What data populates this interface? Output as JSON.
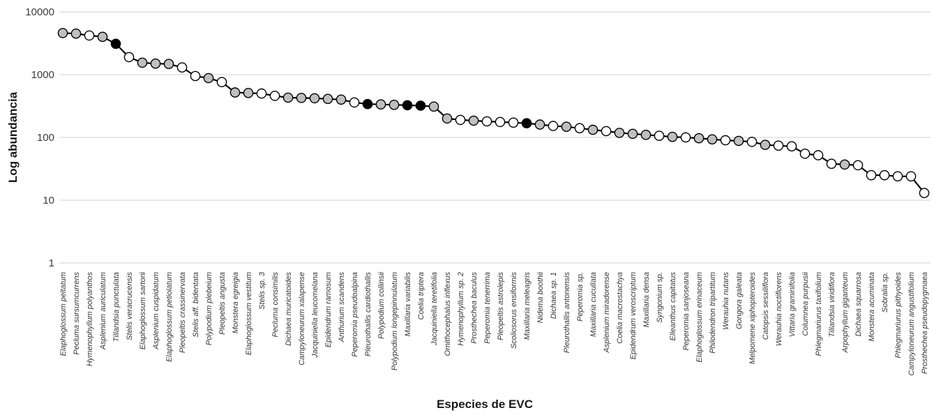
{
  "chart_data": {
    "type": "line",
    "title": "",
    "xlabel": "Especies de EVC",
    "ylabel": "Log abundancia",
    "y_scale": "log",
    "ylim": [
      1,
      10000
    ],
    "y_ticks": [
      "10000",
      "1000",
      "100",
      "10",
      "1"
    ],
    "y_tick_values": [
      10000,
      1000,
      100,
      10,
      1
    ],
    "grid": "horizontal",
    "legend": "none",
    "line_color": "#000000",
    "marker_stroke_color": "#000000",
    "marker_fill_colors": {
      "gray": "#bfbfbf",
      "white": "#ffffff",
      "black": "#000000"
    },
    "categories": [
      "Elaphoglossum peltatum",
      "Pecluma sursumcurrens",
      "Hymenophyllum polyanthos",
      "Asplenium auriculatum",
      "Tillandsia punctulata",
      "Stelis veracrucensis",
      "Elaphoglossum sartorii",
      "Asplenium cuspidatum",
      "Elaphoglossum petiolatum",
      "Pleopeltis crassinervata",
      "Stelis aff. bidentata",
      "Polypodium plebeium",
      "Pleopeltis angusta",
      "Monstera egreigia",
      "Elaphoglossum vestitum",
      "Stelis sp. 3",
      "Pecluma consimilis",
      "Dichaea muricatoides",
      "Campyloneurum xalapense",
      "Jacquiniella leucomelana",
      "Epidendrum ramosum",
      "Anthurium scandens",
      "Peperomia pseudoalpina",
      "Pleurothallis cardiothallis",
      "Polypodium collinsii",
      "Polypodium longepinnulatum",
      "Maxillaria variabilis",
      "Coelia triptera",
      "Jacquiniella teretifolia",
      "Ornithocephalus inflexus",
      "Hymenophyllum sp. 2",
      "Prosthechea baculus",
      "Peperomia tenerrima",
      "Pleopeltis astrolepis",
      "Scoliosorus ensiformis",
      "Maxillaria meleagris",
      "Nidema boothii",
      "Dichaea sp. 1",
      "Pleurothallis antonensis",
      "Peperomia sp.",
      "Maxillaria cucullata",
      "Asplenium miradorense",
      "Coelia macrostachya",
      "Epidendrum veroscriptum",
      "Maxillaria densa",
      "Syngonium sp.",
      "Elleanthus capitatus",
      "Peperomia sanjoseana",
      "Elaphoglossum erinaceum",
      "Philodendron tripartitum",
      "Werauhia nutans",
      "Gongora galeata",
      "Melpomene xiphopteroides",
      "Catopsis sessiliflora",
      "Werauhia noctiflorens",
      "Vittaria graminifolia",
      "Columnea purpusii",
      "Phlegmariurus taxifolium",
      "Tillandsia viridiflora",
      "Arpophyllum giganteum",
      "Dichaea squarrosa",
      "Monstera acuminata",
      "Sobralia sp.",
      "Phlegmariurus pithyoides",
      "Campyloneurum angustifolium",
      "Prosthechea pseudopygmaea"
    ],
    "series": [
      {
        "name": "Log abundancia",
        "values": [
          4600,
          4500,
          4200,
          4000,
          3100,
          1900,
          1550,
          1500,
          1480,
          1300,
          950,
          880,
          760,
          520,
          510,
          500,
          460,
          430,
          425,
          420,
          410,
          400,
          360,
          340,
          335,
          330,
          325,
          320,
          310,
          200,
          190,
          185,
          180,
          176,
          172,
          168,
          160,
          152,
          148,
          140,
          132,
          126,
          118,
          114,
          110,
          106,
          102,
          100,
          97,
          93,
          90,
          88,
          85,
          76,
          74,
          72,
          55,
          52,
          38,
          37,
          36,
          25,
          25,
          24,
          24,
          13
        ],
        "marker_fills": [
          "gray",
          "gray",
          "white",
          "gray",
          "black",
          "white",
          "gray",
          "gray",
          "gray",
          "white",
          "white",
          "gray",
          "white",
          "gray",
          "gray",
          "white",
          "white",
          "gray",
          "gray",
          "gray",
          "gray",
          "gray",
          "white",
          "black",
          "gray",
          "gray",
          "black",
          "black",
          "gray",
          "gray",
          "white",
          "gray",
          "white",
          "white",
          "white",
          "black",
          "gray",
          "white",
          "gray",
          "white",
          "gray",
          "white",
          "gray",
          "gray",
          "gray",
          "white",
          "gray",
          "white",
          "gray",
          "gray",
          "white",
          "gray",
          "white",
          "gray",
          "white",
          "white",
          "white",
          "white",
          "white",
          "gray",
          "white",
          "white",
          "white",
          "white",
          "white",
          "white"
        ]
      }
    ]
  }
}
